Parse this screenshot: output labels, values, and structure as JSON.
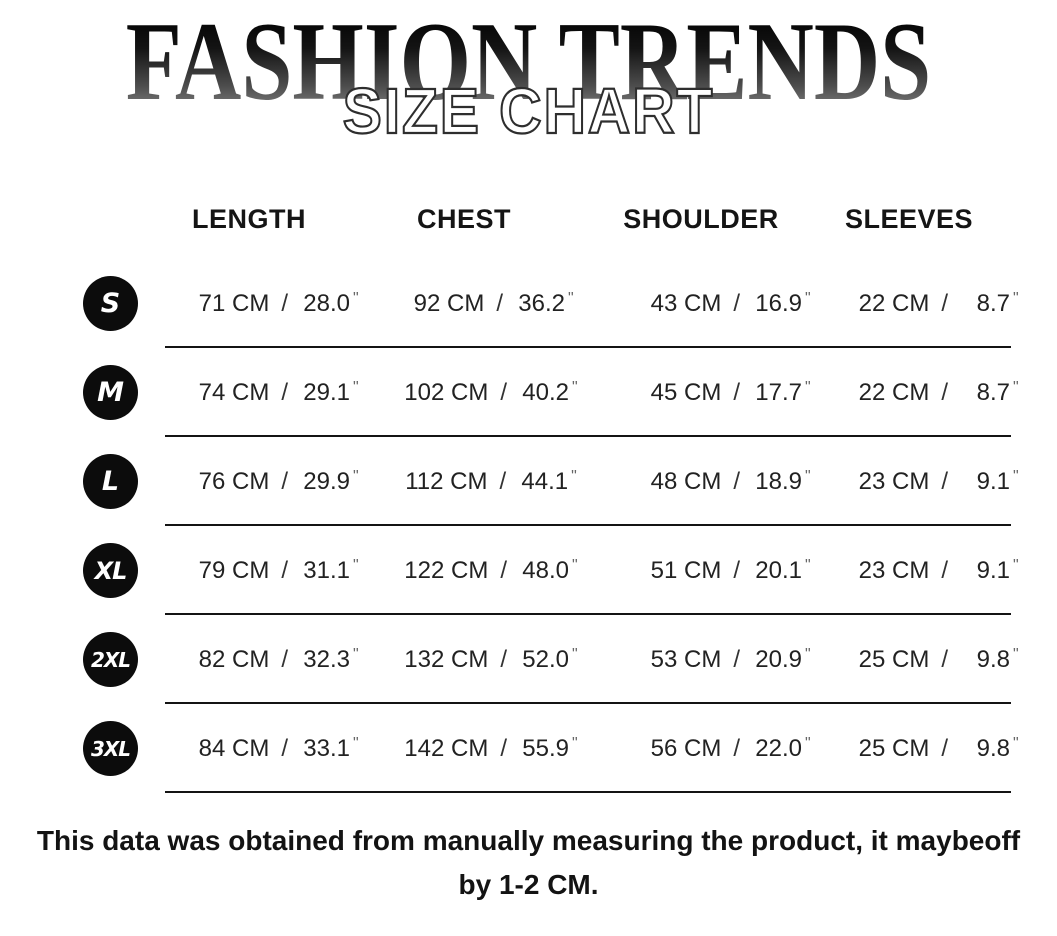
{
  "title": {
    "brand": "FASHION TRENDS",
    "subtitle": "SIZE CHART"
  },
  "table": {
    "headers": [
      "LENGTH",
      "CHEST",
      "SHOULDER",
      "SLEEVES"
    ],
    "separator": "/",
    "inch_mark": "\"",
    "rows": [
      {
        "size": "S",
        "length": {
          "cm": "71 CM",
          "in": "28.0"
        },
        "chest": {
          "cm": "92 CM",
          "in": "36.2"
        },
        "shoulder": {
          "cm": "43 CM",
          "in": "16.9"
        },
        "sleeves": {
          "cm": "22 CM",
          "in": "8.7"
        }
      },
      {
        "size": "M",
        "length": {
          "cm": "74 CM",
          "in": "29.1"
        },
        "chest": {
          "cm": "102 CM",
          "in": "40.2"
        },
        "shoulder": {
          "cm": "45 CM",
          "in": "17.7"
        },
        "sleeves": {
          "cm": "22 CM",
          "in": "8.7"
        }
      },
      {
        "size": "L",
        "length": {
          "cm": "76 CM",
          "in": "29.9"
        },
        "chest": {
          "cm": "112 CM",
          "in": "44.1"
        },
        "shoulder": {
          "cm": "48 CM",
          "in": "18.9"
        },
        "sleeves": {
          "cm": "23 CM",
          "in": "9.1"
        }
      },
      {
        "size": "XL",
        "length": {
          "cm": "79 CM",
          "in": "31.1"
        },
        "chest": {
          "cm": "122 CM",
          "in": "48.0"
        },
        "shoulder": {
          "cm": "51 CM",
          "in": "20.1"
        },
        "sleeves": {
          "cm": "23 CM",
          "in": "9.1"
        }
      },
      {
        "size": "2XL",
        "length": {
          "cm": "82 CM",
          "in": "32.3"
        },
        "chest": {
          "cm": "132 CM",
          "in": "52.0"
        },
        "shoulder": {
          "cm": "53 CM",
          "in": "20.9"
        },
        "sleeves": {
          "cm": "25 CM",
          "in": "9.8"
        }
      },
      {
        "size": "3XL",
        "length": {
          "cm": "84 CM",
          "in": "33.1"
        },
        "chest": {
          "cm": "142 CM",
          "in": "55.9"
        },
        "shoulder": {
          "cm": "56 CM",
          "in": "22.0"
        },
        "sleeves": {
          "cm": "25 CM",
          "in": "9.8"
        }
      }
    ]
  },
  "footer": {
    "line1": "This data was obtained from manually measuring the product, it maybeoff",
    "line2": "by 1-2 CM."
  },
  "colors": {
    "badge_bg": "#0c0c0c",
    "text": "#222222",
    "divider": "#141414",
    "title_gradient_top": "#000000",
    "title_gradient_bottom": "#8c8c8c",
    "subtitle_fill": "#ffffff",
    "subtitle_outline": "#2e2e2e"
  }
}
